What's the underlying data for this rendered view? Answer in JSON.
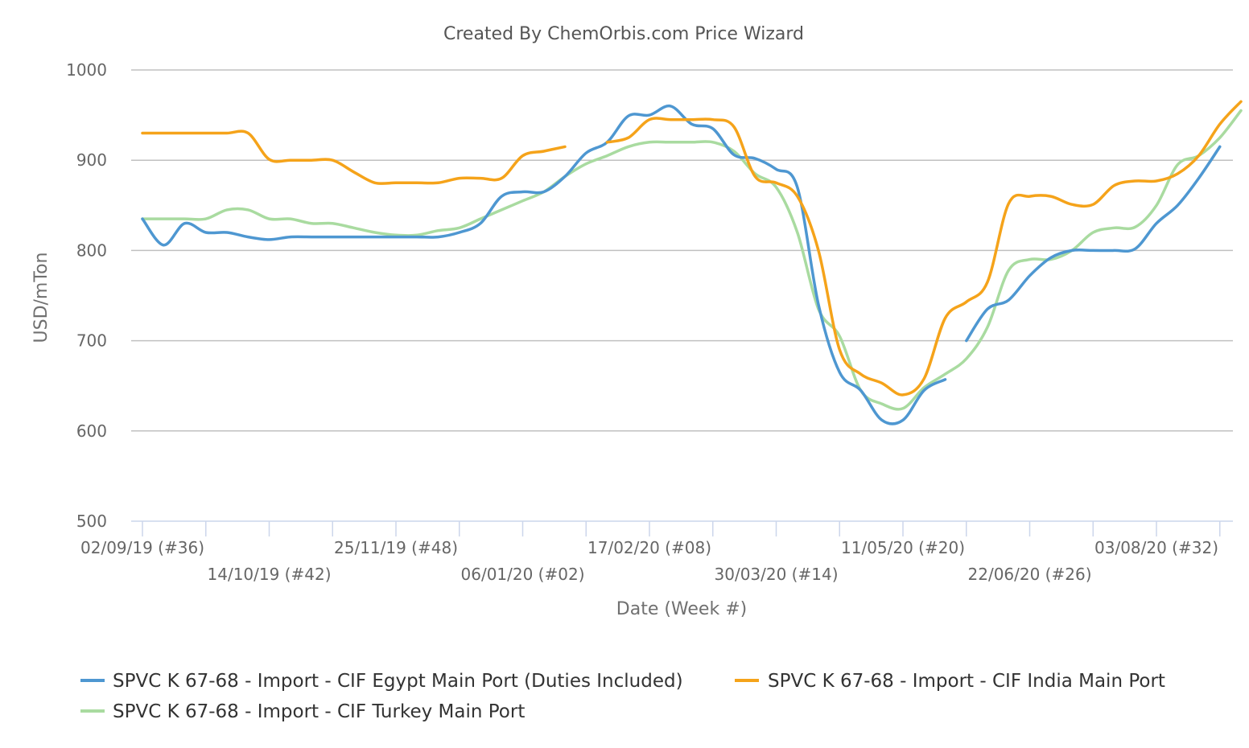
{
  "chart_data": {
    "type": "line",
    "title": "Created By ChemOrbis.com Price Wizard",
    "xlabel": "Date (Week #)",
    "ylabel": "USD/mTon",
    "ylim": [
      500,
      1000
    ],
    "yticks": [
      500,
      600,
      700,
      800,
      900,
      1000
    ],
    "grid": true,
    "legend_position": "bottom",
    "x_ticks": [
      {
        "week": 0,
        "label": "02/09/19 (#36)"
      },
      {
        "week": 6,
        "label": "14/10/19 (#42)"
      },
      {
        "week": 12,
        "label": "25/11/19 (#48)"
      },
      {
        "week": 18,
        "label": "06/01/20 (#02)"
      },
      {
        "week": 24,
        "label": "17/02/20 (#08)"
      },
      {
        "week": 30,
        "label": "30/03/20 (#14)"
      },
      {
        "week": 36,
        "label": "11/05/20 (#20)"
      },
      {
        "week": 42,
        "label": "22/06/20 (#26)"
      },
      {
        "week": 48,
        "label": "03/08/20 (#32)"
      }
    ],
    "series": [
      {
        "name": "SPVC K 67-68 - Import - CIF Egypt Main Port (Duties Included)",
        "color": "#4e97d1",
        "points": [
          [
            [
              0,
              835
            ],
            [
              1,
              806
            ],
            [
              2,
              830
            ],
            [
              3,
              820
            ],
            [
              4,
              820
            ],
            [
              5,
              815
            ],
            [
              6,
              812
            ],
            [
              7,
              815
            ],
            [
              8,
              815
            ],
            [
              9,
              815
            ],
            [
              10,
              815
            ],
            [
              11,
              815
            ],
            [
              12,
              815
            ],
            [
              13,
              815
            ],
            [
              14,
              815
            ],
            [
              15,
              820
            ],
            [
              16,
              830
            ],
            [
              17,
              860
            ],
            [
              18,
              865
            ],
            [
              19,
              865
            ],
            [
              20,
              882
            ],
            [
              21,
              908
            ],
            [
              22,
              920
            ],
            [
              23,
              949
            ],
            [
              24,
              950
            ],
            [
              25,
              960
            ],
            [
              26,
              940
            ],
            [
              27,
              935
            ],
            [
              28,
              906
            ],
            [
              29,
              902
            ],
            [
              30,
              890
            ],
            [
              31,
              870
            ],
            [
              32,
              740
            ],
            [
              33,
              665
            ],
            [
              34,
              645
            ],
            [
              35,
              612
            ],
            [
              36,
              612
            ],
            [
              37,
              645
            ],
            [
              38,
              657
            ]
          ],
          [
            [
              39,
              700
            ],
            [
              40,
              735
            ],
            [
              41,
              745
            ],
            [
              42,
              772
            ],
            [
              43,
              792
            ],
            [
              44,
              800
            ],
            [
              45,
              800
            ],
            [
              46,
              800
            ],
            [
              47,
              802
            ],
            [
              48,
              830
            ],
            [
              49,
              850
            ],
            [
              50,
              880
            ],
            [
              51,
              915
            ]
          ]
        ]
      },
      {
        "name": "SPVC K 67-68 - Import - CIF India Main Port",
        "color": "#f5a31a",
        "points": [
          [
            [
              0,
              930
            ],
            [
              1,
              930
            ],
            [
              2,
              930
            ],
            [
              3,
              930
            ],
            [
              4,
              930
            ],
            [
              5,
              930
            ],
            [
              6,
              901
            ],
            [
              7,
              900
            ],
            [
              8,
              900
            ],
            [
              9,
              900
            ],
            [
              10,
              887
            ],
            [
              11,
              875
            ],
            [
              12,
              875
            ],
            [
              13,
              875
            ],
            [
              14,
              875
            ],
            [
              15,
              880
            ],
            [
              16,
              880
            ],
            [
              17,
              880
            ],
            [
              18,
              905
            ],
            [
              19,
              910
            ],
            [
              20,
              915
            ]
          ],
          [
            [
              22,
              920
            ],
            [
              23,
              925
            ],
            [
              24,
              945
            ],
            [
              25,
              945
            ],
            [
              26,
              945
            ],
            [
              27,
              945
            ],
            [
              28,
              937
            ],
            [
              29,
              882
            ],
            [
              30,
              875
            ],
            [
              31,
              860
            ],
            [
              32,
              800
            ],
            [
              33,
              690
            ],
            [
              34,
              663
            ],
            [
              35,
              653
            ],
            [
              36,
              640
            ],
            [
              37,
              658
            ],
            [
              38,
              725
            ],
            [
              39,
              743
            ],
            [
              40,
              765
            ],
            [
              41,
              852
            ],
            [
              42,
              860
            ],
            [
              43,
              860
            ],
            [
              44,
              851
            ],
            [
              45,
              851
            ],
            [
              46,
              872
            ],
            [
              47,
              877
            ],
            [
              48,
              877
            ],
            [
              49,
              885
            ],
            [
              50,
              905
            ],
            [
              51,
              940
            ],
            [
              52,
              965
            ]
          ]
        ]
      },
      {
        "name": "SPVC K 67-68 - Import - CIF Turkey Main Port",
        "color": "#a9dba0",
        "points": [
          [
            [
              0,
              835
            ],
            [
              1,
              835
            ],
            [
              2,
              835
            ],
            [
              3,
              835
            ],
            [
              4,
              845
            ],
            [
              5,
              845
            ],
            [
              6,
              835
            ],
            [
              7,
              835
            ],
            [
              8,
              830
            ],
            [
              9,
              830
            ],
            [
              10,
              825
            ],
            [
              11,
              820
            ],
            [
              12,
              817
            ],
            [
              13,
              817
            ],
            [
              14,
              822
            ],
            [
              15,
              825
            ],
            [
              16,
              835
            ],
            [
              17,
              845
            ],
            [
              18,
              855
            ],
            [
              19,
              865
            ],
            [
              20,
              882
            ],
            [
              21,
              896
            ],
            [
              22,
              905
            ],
            [
              23,
              915
            ],
            [
              24,
              920
            ],
            [
              25,
              920
            ],
            [
              26,
              920
            ],
            [
              27,
              920
            ],
            [
              28,
              910
            ],
            [
              29,
              885
            ],
            [
              30,
              870
            ],
            [
              31,
              820
            ],
            [
              32,
              735
            ],
            [
              33,
              705
            ],
            [
              34,
              645
            ],
            [
              35,
              630
            ],
            [
              36,
              625
            ],
            [
              37,
              648
            ],
            [
              38,
              663
            ],
            [
              39,
              680
            ],
            [
              40,
              715
            ],
            [
              41,
              778
            ],
            [
              42,
              790
            ],
            [
              43,
              790
            ],
            [
              44,
              800
            ],
            [
              45,
              820
            ],
            [
              46,
              825
            ],
            [
              47,
              826
            ],
            [
              48,
              850
            ],
            [
              49,
              895
            ],
            [
              50,
              905
            ],
            [
              51,
              925
            ],
            [
              52,
              955
            ]
          ]
        ]
      }
    ]
  }
}
